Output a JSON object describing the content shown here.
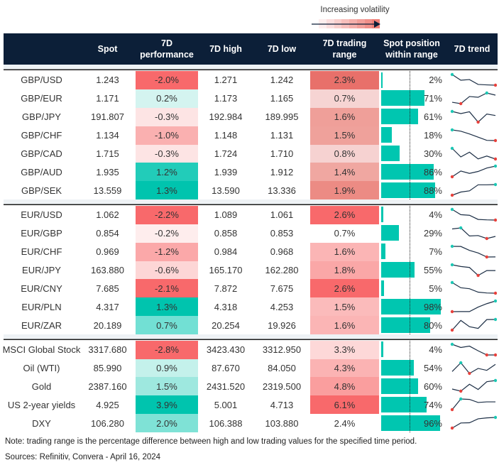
{
  "legend": {
    "label": "Increasing volatility",
    "gradient": [
      "#fdeeee",
      "#fbdede",
      "#f9cfcd",
      "#f7bfbc",
      "#f5afab",
      "#f29f9a",
      "#f08f89",
      "#ee7f78"
    ],
    "arrow_color": "#0c1f38"
  },
  "colors": {
    "header_bg": "#0c1f38",
    "bar": "#00c6b0",
    "trend_line": "#1c2e45",
    "trend_max_dot": "#1cc7b4",
    "trend_min_dot": "#e8413c"
  },
  "header": {
    "label": "",
    "spot": "Spot",
    "perf": "7D\nperformance",
    "high": "7D high",
    "low": "7D low",
    "range": "7D trading\nrange",
    "pos": "Spot position\nwithin range",
    "trend": "7D trend"
  },
  "groups": [
    {
      "rows": [
        {
          "label": "GBP/USD",
          "spot": "1.243",
          "perf": "-2.0%",
          "perf_color": "#f8696b",
          "high": "1.271",
          "low": "1.242",
          "range": "2.3%",
          "range_color": "#e8706a",
          "pos": 2,
          "pos_text": "2%",
          "trend": [
            1.0,
            0.47,
            0.53,
            0.07,
            0.03,
            0.0
          ]
        },
        {
          "label": "GBP/EUR",
          "spot": "1.171",
          "perf": "0.2%",
          "perf_color": "#d4f4f0",
          "high": "1.173",
          "low": "1.165",
          "range": "0.7%",
          "range_color": "#f6d4d3",
          "pos": 71,
          "pos_text": "71%",
          "trend": [
            0.13,
            0.0,
            0.67,
            0.6,
            1.0,
            0.8
          ]
        },
        {
          "label": "GBP/JPY",
          "spot": "191.807",
          "perf": "-0.3%",
          "perf_color": "#fde4e4",
          "high": "192.984",
          "low": "189.995",
          "range": "1.6%",
          "range_color": "#ef9f99",
          "pos": 61,
          "pos_text": "61%",
          "trend": [
            1.0,
            0.8,
            0.97,
            0.0,
            0.76,
            0.62
          ]
        },
        {
          "label": "GBP/CHF",
          "spot": "1.134",
          "perf": "-1.0%",
          "perf_color": "#fab0b0",
          "high": "1.148",
          "low": "1.131",
          "range": "1.5%",
          "range_color": "#efa19b",
          "pos": 18,
          "pos_text": "18%",
          "trend": [
            1.0,
            0.88,
            0.62,
            0.32,
            0.02,
            0.0
          ]
        },
        {
          "label": "GBP/CAD",
          "spot": "1.715",
          "perf": "-0.3%",
          "perf_color": "#fde4e4",
          "high": "1.724",
          "low": "1.710",
          "range": "0.8%",
          "range_color": "#f6d2d1",
          "pos": 30,
          "pos_text": "30%",
          "trend": [
            1.0,
            0.2,
            0.64,
            0.01,
            0.28,
            0.0
          ]
        },
        {
          "label": "GBP/AUD",
          "spot": "1.935",
          "perf": "1.2%",
          "perf_color": "#22ccb9",
          "high": "1.939",
          "low": "1.912",
          "range": "1.4%",
          "range_color": "#f0a7a1",
          "pos": 86,
          "pos_text": "86%",
          "trend": [
            0.0,
            0.54,
            0.32,
            0.5,
            0.82,
            1.0
          ]
        },
        {
          "label": "GBP/SEK",
          "spot": "13.559",
          "perf": "1.3%",
          "perf_color": "#00c4ae",
          "high": "13.590",
          "low": "13.336",
          "range": "1.9%",
          "range_color": "#ec8b84",
          "pos": 88,
          "pos_text": "88%",
          "trend": [
            0.0,
            0.3,
            0.41,
            0.98,
            0.98,
            1.0
          ]
        }
      ]
    },
    {
      "rows": [
        {
          "label": "EUR/USD",
          "spot": "1.062",
          "perf": "-2.2%",
          "perf_color": "#f8696b",
          "high": "1.089",
          "low": "1.061",
          "range": "2.6%",
          "range_color": "#f8696b",
          "pos": 4,
          "pos_text": "4%",
          "trend": [
            1.0,
            0.51,
            0.45,
            0.06,
            0.02,
            0.0
          ]
        },
        {
          "label": "EUR/GBP",
          "spot": "0.854",
          "perf": "-0.2%",
          "perf_color": "#feeded",
          "high": "0.858",
          "low": "0.853",
          "range": "0.7%",
          "range_color": "#ffffff",
          "pos": 29,
          "pos_text": "29%",
          "trend": [
            0.9,
            1.0,
            0.24,
            0.28,
            0.0,
            0.2
          ]
        },
        {
          "label": "EUR/CHF",
          "spot": "0.969",
          "perf": "-1.2%",
          "perf_color": "#fba8a9",
          "high": "0.984",
          "low": "0.968",
          "range": "1.6%",
          "range_color": "#fbb5b5",
          "pos": 7,
          "pos_text": "7%",
          "trend": [
            1.0,
            0.99,
            0.62,
            0.38,
            0.0,
            0.01
          ]
        },
        {
          "label": "EUR/JPY",
          "spot": "163.880",
          "perf": "-0.6%",
          "perf_color": "#fdd6d6",
          "high": "165.170",
          "low": "162.280",
          "range": "1.8%",
          "range_color": "#faa7a7",
          "pos": 55,
          "pos_text": "55%",
          "trend": [
            1.0,
            0.84,
            0.75,
            0.0,
            0.46,
            0.46
          ]
        },
        {
          "label": "EUR/CNY",
          "spot": "7.685",
          "perf": "-2.1%",
          "perf_color": "#f8696b",
          "high": "7.872",
          "low": "7.675",
          "range": "2.6%",
          "range_color": "#f8696b",
          "pos": 5,
          "pos_text": "5%",
          "trend": [
            1.0,
            0.51,
            0.42,
            0.1,
            0.02,
            0.0
          ]
        },
        {
          "label": "EUR/PLN",
          "spot": "4.317",
          "perf": "1.3%",
          "perf_color": "#00c4ae",
          "high": "4.318",
          "low": "4.253",
          "range": "1.5%",
          "range_color": "#fbbbbb",
          "pos": 98,
          "pos_text": "98%",
          "trend": [
            0.0,
            0.01,
            0.01,
            0.43,
            0.75,
            1.0
          ]
        },
        {
          "label": "EUR/ZAR",
          "spot": "20.189",
          "perf": "0.7%",
          "perf_color": "#72e0d4",
          "high": "20.254",
          "low": "19.926",
          "range": "1.6%",
          "range_color": "#fbb5b5",
          "pos": 80,
          "pos_text": "80%",
          "trend": [
            0.0,
            0.91,
            0.32,
            0.16,
            0.99,
            1.0
          ]
        }
      ]
    },
    {
      "rows": [
        {
          "label": "MSCI Global Stock",
          "spot": "3317.680",
          "perf": "-2.8%",
          "perf_color": "#f8696b",
          "high": "3423.430",
          "low": "3312.950",
          "range": "3.3%",
          "range_color": "#fdd8d8",
          "pos": 4,
          "pos_text": "4%",
          "trend": [
            1.0,
            0.7,
            0.83,
            0.39,
            0.0,
            0.0
          ]
        },
        {
          "label": "Oil (WTI)",
          "spot": "85.990",
          "perf": "0.9%",
          "perf_color": "#c4f1eb",
          "high": "87.670",
          "low": "84.050",
          "range": "4.3%",
          "range_color": "#fbb3b3",
          "pos": 54,
          "pos_text": "54%",
          "trend": [
            0.18,
            1.0,
            0.0,
            0.47,
            0.29,
            0.85
          ]
        },
        {
          "label": "Gold",
          "spot": "2387.160",
          "perf": "1.5%",
          "perf_color": "#9ee8df",
          "high": "2431.520",
          "low": "2319.500",
          "range": "4.8%",
          "range_color": "#fa9e9e",
          "pos": 60,
          "pos_text": "60%",
          "trend": [
            0.2,
            0.0,
            0.65,
            0.16,
            0.89,
            1.0
          ]
        },
        {
          "label": "US 2-year yields",
          "spot": "4.925",
          "perf": "3.9%",
          "perf_color": "#00c4ae",
          "high": "5.001",
          "low": "4.713",
          "range": "6.1%",
          "range_color": "#f8696b",
          "pos": 74,
          "pos_text": "74%",
          "trend": [
            0.0,
            1.0,
            0.96,
            0.67,
            0.73,
            0.73
          ]
        },
        {
          "label": "DXY",
          "spot": "106.280",
          "perf": "2.0%",
          "perf_color": "#7fe2d6",
          "high": "106.388",
          "low": "103.880",
          "range": "2.4%",
          "range_color": "#ffffff",
          "pos": 96,
          "pos_text": "96%",
          "trend": [
            0.0,
            0.48,
            0.5,
            0.87,
            0.96,
            1.0
          ]
        }
      ]
    }
  ],
  "footer": {
    "note": "Note: trading range is the percentage difference between high and low trading values for the specified time period.",
    "sources": "Sources: Refinitiv, Convera - April 16, 2024"
  }
}
